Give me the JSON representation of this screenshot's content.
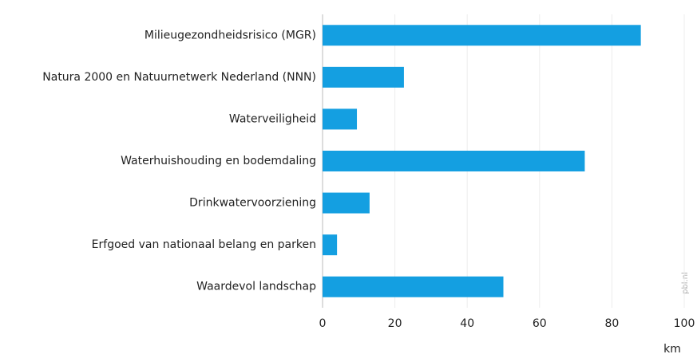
{
  "chart_data": {
    "type": "bar",
    "orientation": "horizontal",
    "categories": [
      "Milieugezondheidsrisico (MGR)",
      "Natura 2000 en Natuurnetwerk Nederland (NNN)",
      "Waterveiligheid",
      "Waterhuishouding en bodemdaling",
      "Drinkwatervoorziening",
      "Erfgoed van nationaal belang en parken",
      "Waardevol landschap"
    ],
    "values": [
      88,
      22.5,
      9.5,
      72.5,
      13,
      4,
      50
    ],
    "color": "#149fe1",
    "xlim": [
      0,
      100
    ],
    "xticks": [
      0,
      20,
      40,
      60,
      80,
      100
    ],
    "x_label": "km",
    "source": "pbl.nl",
    "grid": true
  }
}
